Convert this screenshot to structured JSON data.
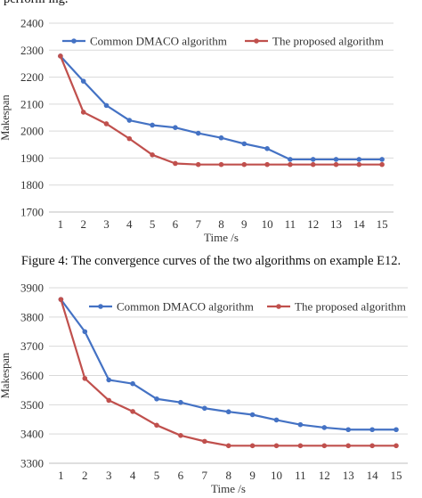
{
  "top_caption": "perform ing.",
  "figure4_caption": "Figure 4: The convergence curves of the two algorithms on example E12.",
  "colors": {
    "common": "#4472C4",
    "proposed": "#C0504D",
    "grid": "#D9D9D9",
    "axis": "#BFBFBF"
  },
  "chart_data": [
    {
      "type": "line",
      "title": "",
      "xlabel": "Time /s",
      "ylabel": "Makespan",
      "ylim": [
        1700,
        2400
      ],
      "yticks": [
        1700,
        1800,
        1900,
        2000,
        2100,
        2200,
        2300,
        2400
      ],
      "categories": [
        1,
        2,
        3,
        4,
        5,
        6,
        7,
        8,
        9,
        10,
        11,
        12,
        13,
        14,
        15
      ],
      "grid": true,
      "legend": "top",
      "series": [
        {
          "name": "Common DMACO algorithm",
          "color": "#4472C4",
          "values": [
            2278,
            2185,
            2095,
            2040,
            2022,
            2013,
            1992,
            1975,
            1953,
            1935,
            1895,
            1895,
            1895,
            1895,
            1895
          ]
        },
        {
          "name": "The proposed algorithm",
          "color": "#C0504D",
          "values": [
            2278,
            2070,
            2027,
            1972,
            1912,
            1880,
            1876,
            1876,
            1876,
            1876,
            1876,
            1876,
            1876,
            1876,
            1876
          ]
        }
      ]
    },
    {
      "type": "line",
      "title": "",
      "xlabel": "Time /s",
      "ylabel": "Makespan",
      "ylim": [
        3300,
        3900
      ],
      "yticks": [
        3300,
        3400,
        3500,
        3600,
        3700,
        3800,
        3900
      ],
      "categories": [
        1,
        2,
        3,
        4,
        5,
        6,
        7,
        8,
        9,
        10,
        11,
        12,
        13,
        14,
        15
      ],
      "grid": true,
      "legend": "top",
      "series": [
        {
          "name": "Common DMACO algorithm",
          "color": "#4472C4",
          "values": [
            3860,
            3750,
            3585,
            3572,
            3520,
            3508,
            3488,
            3476,
            3466,
            3448,
            3432,
            3422,
            3415,
            3415,
            3415
          ]
        },
        {
          "name": "The proposed algorithm",
          "color": "#C0504D",
          "values": [
            3860,
            3590,
            3515,
            3477,
            3430,
            3395,
            3375,
            3360,
            3360,
            3360,
            3360,
            3360,
            3360,
            3360,
            3360
          ]
        }
      ]
    }
  ]
}
